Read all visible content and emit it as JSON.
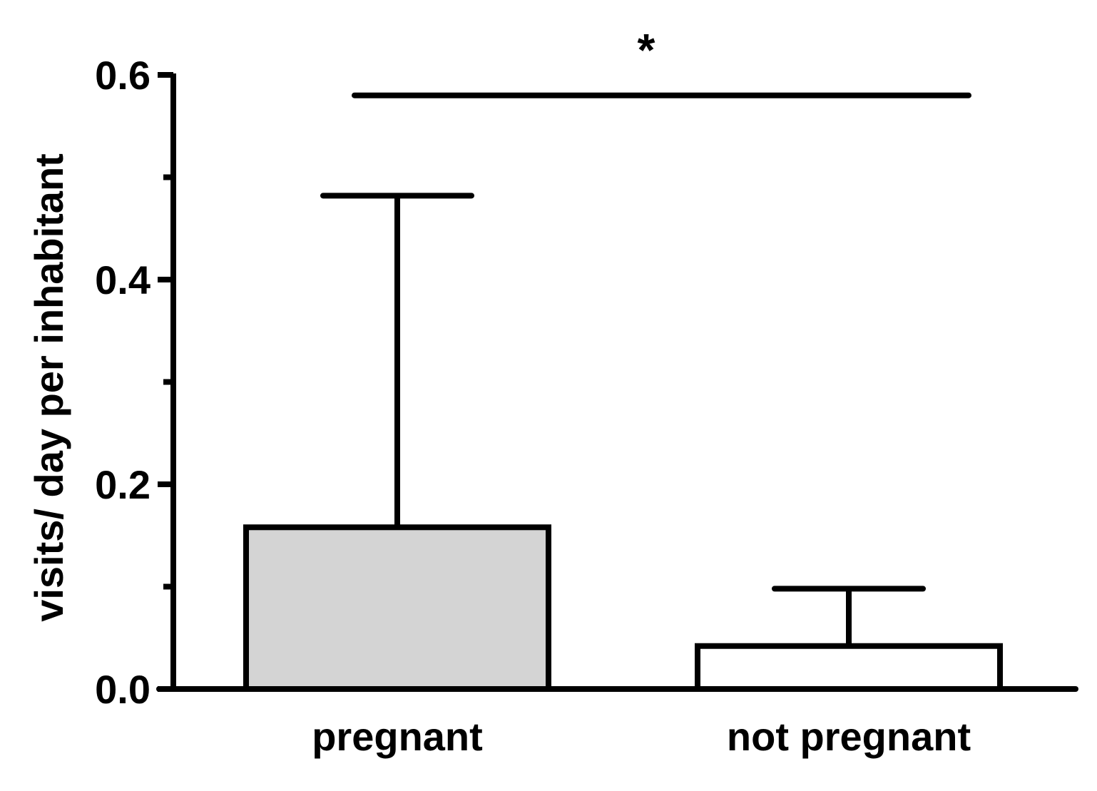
{
  "chart_data": {
    "type": "bar",
    "title": "",
    "xlabel": "",
    "ylabel": "visits/ day per inhabitant",
    "ylim": [
      0,
      0.6
    ],
    "yticks": [
      0.0,
      0.2,
      0.4,
      0.6
    ],
    "ytick_labels": [
      "0.0",
      "0.2",
      "0.4",
      "0.6"
    ],
    "minor_yticks": [
      0.1,
      0.3,
      0.5
    ],
    "grid": false,
    "categories": [
      "pregnant",
      "not pregnant"
    ],
    "values": [
      0.158,
      0.042
    ],
    "error_upper": [
      0.482,
      0.098
    ],
    "bar_colors": [
      "#d4d4d4",
      "#ffffff"
    ],
    "significance": {
      "label": "*",
      "between": [
        "pregnant",
        "not pregnant"
      ],
      "y": 0.58
    }
  }
}
